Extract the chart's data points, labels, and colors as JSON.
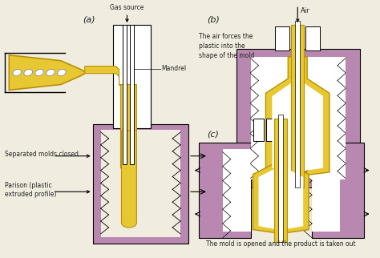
{
  "bg_color": "#f0ece0",
  "mold_color": "#b888b0",
  "yellow_color": "#e8c832",
  "yellow_outline": "#b89000",
  "white_color": "#ffffff",
  "text_color": "#222222",
  "label_a": "(a)",
  "label_b": "(b)",
  "label_c": "(c)",
  "text_gas": "Gas source",
  "text_mandrel": "Mandrel",
  "text_molds_closed": "Separated molds closed",
  "text_parison": "Parison (plastic\nextruded profile)",
  "text_air": "Air",
  "text_b_desc": "The air forces the\nplastic into the\nshape of the mold",
  "text_c_desc": "The mold is opened and the product is taken out"
}
